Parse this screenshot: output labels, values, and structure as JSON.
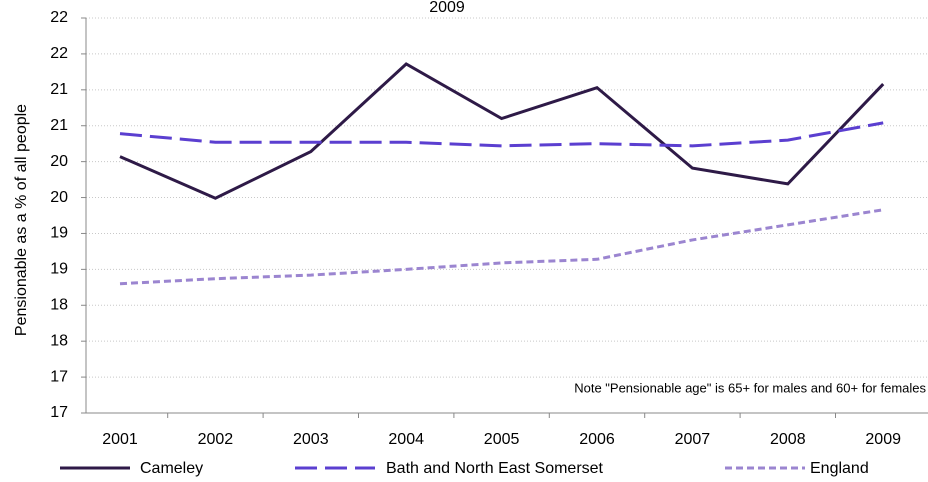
{
  "chart_data": {
    "type": "line",
    "title": "2009",
    "y_label": "Pensionable as a % of all people",
    "annotation": "Note \"Pensionable age\" is 65+ for males and 60+ for females",
    "categories": [
      "2001",
      "2002",
      "2003",
      "2004",
      "2005",
      "2006",
      "2007",
      "2008",
      "2009"
    ],
    "series": [
      {
        "name": "Cameley",
        "color": "#2e1a47",
        "style": "solid",
        "values": [
          20.07,
          19.49,
          20.14,
          21.36,
          20.6,
          21.03,
          19.91,
          19.69,
          21.08
        ]
      },
      {
        "name": "Bath and North East Somerset",
        "color": "#5b3fd0",
        "style": "dashed",
        "values": [
          20.39,
          20.27,
          20.27,
          20.27,
          20.22,
          20.25,
          20.22,
          20.3,
          20.54
        ]
      },
      {
        "name": "England",
        "color": "#9b85d0",
        "style": "dotted",
        "values": [
          18.3,
          18.37,
          18.42,
          18.5,
          18.59,
          18.64,
          18.91,
          19.12,
          19.33
        ]
      }
    ],
    "ylim": [
      16.5,
      22
    ],
    "yticks": [
      {
        "value": 16.5,
        "label": "17"
      },
      {
        "value": 17,
        "label": "17"
      },
      {
        "value": 17.5,
        "label": "18"
      },
      {
        "value": 18,
        "label": "18"
      },
      {
        "value": 18.5,
        "label": "19"
      },
      {
        "value": 19,
        "label": "19"
      },
      {
        "value": 19.5,
        "label": "20"
      },
      {
        "value": 20,
        "label": "20"
      },
      {
        "value": 20.5,
        "label": "21"
      },
      {
        "value": 21,
        "label": "21"
      },
      {
        "value": 21.5,
        "label": "22"
      },
      {
        "value": 22,
        "label": "22"
      }
    ],
    "grid": true,
    "legend": "bottom"
  }
}
